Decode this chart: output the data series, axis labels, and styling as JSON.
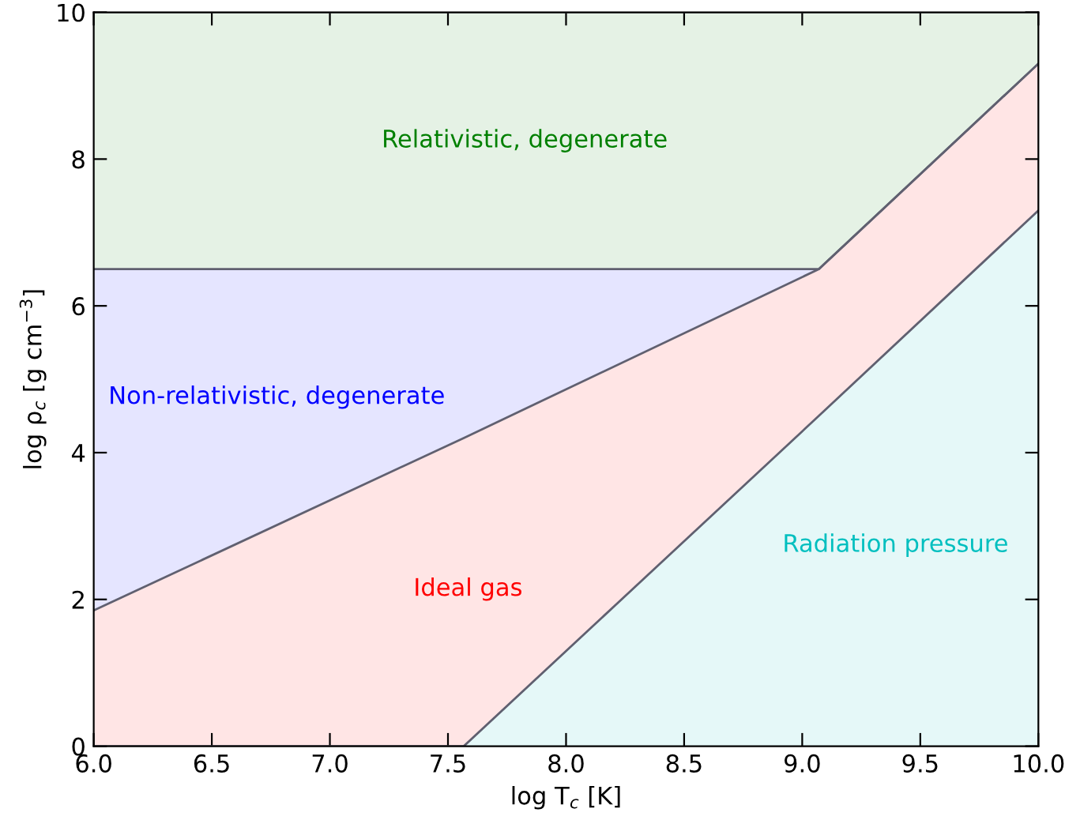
{
  "chart_data": {
    "type": "area",
    "stacked": true,
    "xlabel": "log T$_{c}$ [K]",
    "ylabel": "log ρ$_{c}$ [g cm$^{−3}$]",
    "x": [
      6,
      7.567,
      9.07,
      10
    ],
    "series": [
      {
        "name": "Radiation pressure",
        "color": "#00bfbf",
        "values": [
          0,
          0,
          4.5,
          7.3
        ]
      },
      {
        "name": "Ideal gas",
        "color": "#ff0000",
        "values": [
          1.85,
          4.2,
          2.0,
          2.0
        ]
      },
      {
        "name": "Non-relativistic, degenerate",
        "color": "#0000ff",
        "values": [
          4.65,
          2.3,
          0,
          0
        ]
      },
      {
        "name": "Relativistic, degenerate",
        "color": "#008000",
        "values": [
          3.5,
          3.5,
          3.5,
          0.7
        ]
      }
    ],
    "xlim": [
      6,
      10
    ],
    "xticks": [
      {
        "value": 6,
        "label": "6.0"
      },
      {
        "value": 6.5,
        "label": "6.5"
      },
      {
        "value": 7,
        "label": "7.0"
      },
      {
        "value": 7.5,
        "label": "7.5"
      },
      {
        "value": 8,
        "label": "8.0"
      },
      {
        "value": 8.5,
        "label": "8.5"
      },
      {
        "value": 9,
        "label": "9.0"
      },
      {
        "value": 9.5,
        "label": "9.5"
      },
      {
        "value": 10,
        "label": "10.0"
      }
    ],
    "ylim": [
      0,
      10
    ],
    "yticks": [
      0,
      2,
      4,
      6,
      8,
      10
    ],
    "grid": false,
    "legend": false
  }
}
